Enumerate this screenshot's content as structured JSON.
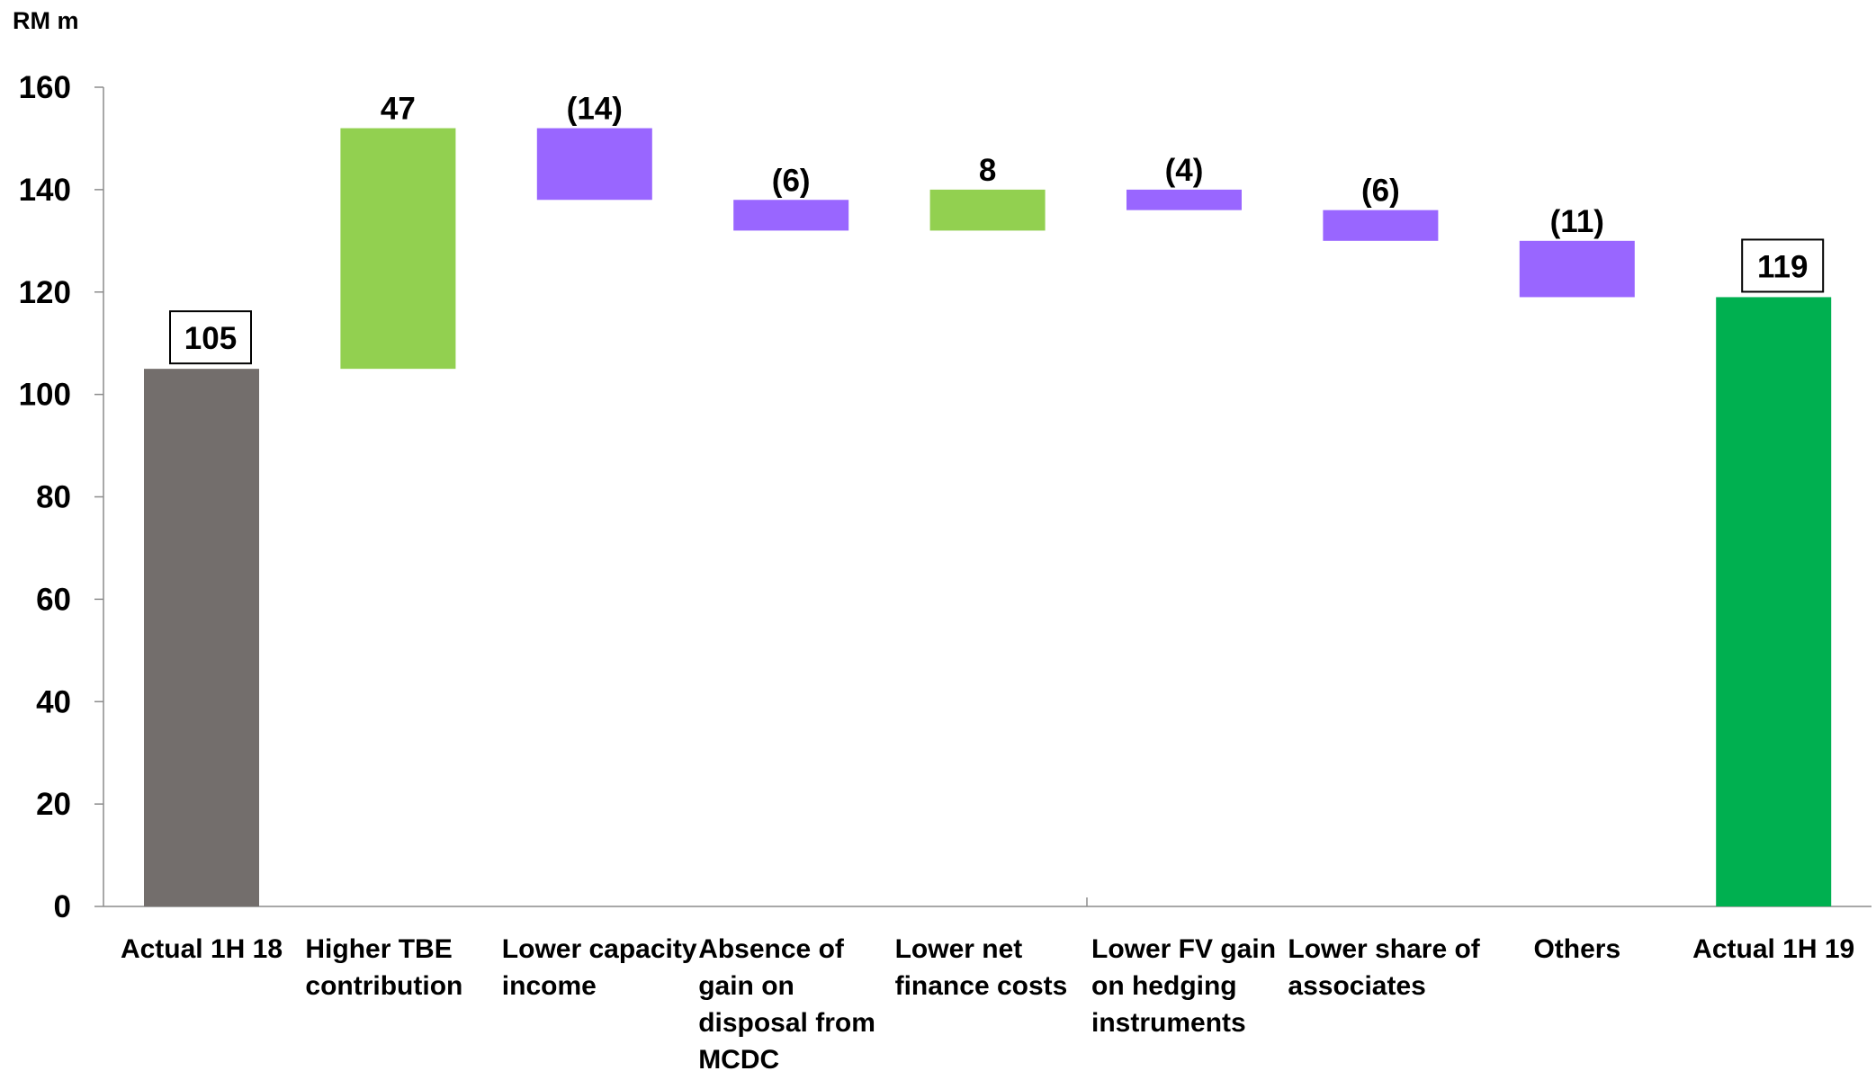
{
  "chart_data": {
    "type": "bar",
    "subtype": "waterfall",
    "unit_label": "RM m",
    "ylim": [
      0,
      160
    ],
    "y_ticks": [
      "0",
      "20",
      "40",
      "60",
      "80",
      "100",
      "120",
      "140",
      "160"
    ],
    "grid": false,
    "legend": "none",
    "categories": [
      {
        "lines": [
          "Actual 1H 18"
        ],
        "value": 105,
        "kind": "total",
        "label": "105",
        "boxed": true,
        "color": "#736e6c"
      },
      {
        "lines": [
          "Higher TBE",
          "contribution"
        ],
        "value": 47,
        "kind": "increase",
        "label": "47",
        "boxed": false,
        "color": "#92d050"
      },
      {
        "lines": [
          "Lower capacity",
          "income"
        ],
        "value": -14,
        "kind": "decrease",
        "label": "(14)",
        "boxed": false,
        "color": "#9966ff"
      },
      {
        "lines": [
          "Absence of",
          "gain on",
          "disposal from",
          "MCDC"
        ],
        "value": -6,
        "kind": "decrease",
        "label": "(6)",
        "boxed": false,
        "color": "#9966ff"
      },
      {
        "lines": [
          "Lower net",
          "finance costs"
        ],
        "value": 8,
        "kind": "increase",
        "label": "8",
        "boxed": false,
        "color": "#92d050"
      },
      {
        "lines": [
          "Lower FV gain",
          "on hedging",
          "instruments"
        ],
        "value": -4,
        "kind": "decrease",
        "label": "(4)",
        "boxed": false,
        "color": "#9966ff"
      },
      {
        "lines": [
          "Lower share of",
          "associates"
        ],
        "value": -6,
        "kind": "decrease",
        "label": "(6)",
        "boxed": false,
        "color": "#9966ff"
      },
      {
        "lines": [
          "Others"
        ],
        "value": -11,
        "kind": "decrease",
        "label": "(11)",
        "boxed": false,
        "color": "#9966ff"
      },
      {
        "lines": [
          "Actual 1H 19"
        ],
        "value": 119,
        "kind": "total",
        "label": "119",
        "boxed": true,
        "color": "#00b050"
      }
    ]
  }
}
